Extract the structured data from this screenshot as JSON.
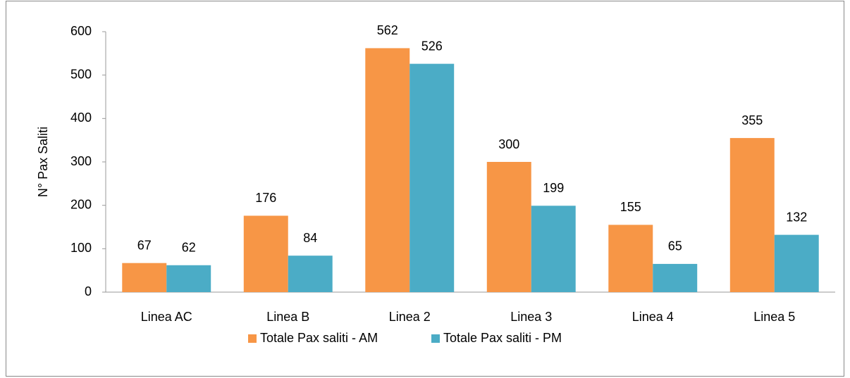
{
  "chart_data": {
    "type": "bar",
    "y_label": "N° Pax Saliti",
    "categories": [
      "Linea AC",
      "Linea B",
      "Linea 2",
      "Linea 3",
      "Linea 4",
      "Linea 5"
    ],
    "series": [
      {
        "name": "Totale Pax saliti - AM",
        "color": "#f79646",
        "values": [
          67,
          176,
          562,
          300,
          155,
          355
        ]
      },
      {
        "name": "Totale Pax saliti - PM",
        "color": "#4bacc6",
        "values": [
          62,
          84,
          526,
          199,
          65,
          132
        ]
      }
    ],
    "ylim": [
      0,
      600
    ],
    "yticks": [
      0,
      100,
      200,
      300,
      400,
      500,
      600
    ],
    "grid": false,
    "legend": "bottom"
  }
}
